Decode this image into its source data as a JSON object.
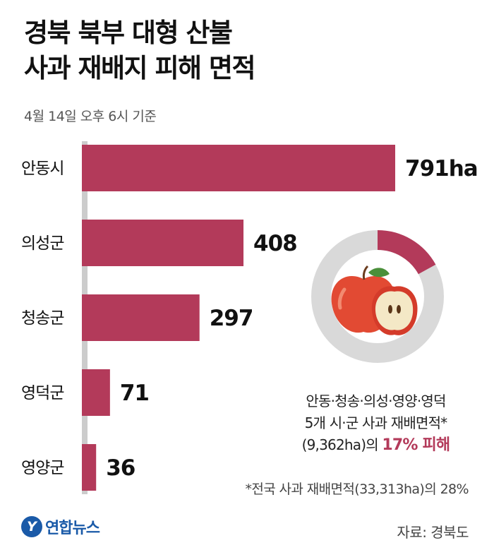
{
  "title_line1": "경북 북부 대형 산불",
  "title_line2": "사과 재배지 피해 면적",
  "subtitle": "4월 14일 오후 6시 기준",
  "chart_data": {
    "type": "bar",
    "orientation": "horizontal",
    "categories": [
      "안동시",
      "의성군",
      "청송군",
      "영덕군",
      "영양군"
    ],
    "values": [
      791,
      408,
      297,
      71,
      36
    ],
    "value_labels": [
      "791ha",
      "408",
      "297",
      "71",
      "36"
    ],
    "unit": "ha",
    "title": "경북 북부 대형 산불 사과 재배지 피해 면적",
    "subtitle": "4월 14일 오후 6시 기준",
    "bar_color": "#b33a5a",
    "axis_color": "#cccccc"
  },
  "donut": {
    "damage_percent": 17,
    "damage_color": "#b33a5a",
    "rest_color": "#d9d9d9",
    "caption_line1": "안동·청송·의성·영양·영덕",
    "caption_line2": "5개 시·군 사과 재배면적*",
    "caption_line3_prefix": "(9,362ha)의 ",
    "caption_highlight": "17% 피해"
  },
  "footnote": "*전국 사과 재배면적(33,313ha)의 28%",
  "logo_mark": "Y",
  "logo_text": "연합뉴스",
  "source": "자료: 경북도"
}
